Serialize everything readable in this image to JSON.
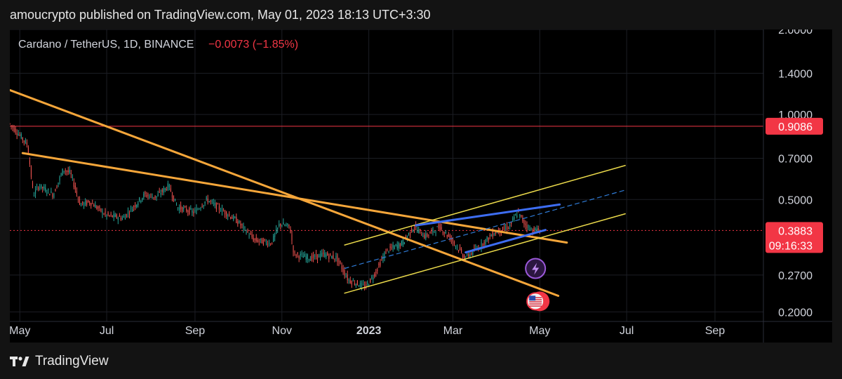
{
  "header": {
    "published": "amoucrypto published on TradingView.com, May 01, 2023 18:13 UTC+3:30"
  },
  "footer": {
    "brand": "TradingView"
  },
  "colors": {
    "background": "#000000",
    "up": "#26a69a",
    "down": "#ef5350",
    "trendline_orange": "#f5a63a",
    "channel_yellow": "#e9d84a",
    "wedge_blue": "#3d6df2",
    "price_red": "#f23645"
  },
  "chart_data": {
    "type": "candlestick",
    "title": "Cardano / TetherUS, 1D, BINANCE",
    "change": "−0.0073 (−1.85%)",
    "y_scale": "log",
    "ylim": [
      0.185,
      2.0
    ],
    "y_ticks": [
      {
        "value": 2.0,
        "label": "2.0000"
      },
      {
        "value": 1.4,
        "label": "1.4000"
      },
      {
        "value": 1.0,
        "label": "1.0000"
      },
      {
        "value": 0.7,
        "label": "0.7000"
      },
      {
        "value": 0.5,
        "label": "0.5000"
      },
      {
        "value": 0.27,
        "label": "0.2700"
      },
      {
        "value": 0.2,
        "label": "0.2000"
      }
    ],
    "x_range": [
      "2022-04-24",
      "2023-10-05"
    ],
    "x_ticks": [
      {
        "date": "2022-05-01",
        "label": "May",
        "bold": false
      },
      {
        "date": "2022-07-01",
        "label": "Jul",
        "bold": false
      },
      {
        "date": "2022-09-01",
        "label": "Sep",
        "bold": false
      },
      {
        "date": "2022-11-01",
        "label": "Nov",
        "bold": false
      },
      {
        "date": "2023-01-01",
        "label": "2023",
        "bold": true
      },
      {
        "date": "2023-03-01",
        "label": "Mar",
        "bold": false
      },
      {
        "date": "2023-05-01",
        "label": "May",
        "bold": false
      },
      {
        "date": "2023-07-01",
        "label": "Jul",
        "bold": false
      },
      {
        "date": "2023-09-01",
        "label": "Sep",
        "bold": false
      }
    ],
    "price_path": [
      [
        "2022-04-24",
        0.93
      ],
      [
        "2022-05-01",
        0.85
      ],
      [
        "2022-05-07",
        0.78
      ],
      [
        "2022-05-11",
        0.52
      ],
      [
        "2022-05-15",
        0.56
      ],
      [
        "2022-05-25",
        0.52
      ],
      [
        "2022-06-01",
        0.64
      ],
      [
        "2022-06-06",
        0.62
      ],
      [
        "2022-06-13",
        0.48
      ],
      [
        "2022-06-20",
        0.49
      ],
      [
        "2022-07-01",
        0.44
      ],
      [
        "2022-07-13",
        0.43
      ],
      [
        "2022-07-28",
        0.52
      ],
      [
        "2022-08-05",
        0.51
      ],
      [
        "2022-08-14",
        0.56
      ],
      [
        "2022-08-20",
        0.47
      ],
      [
        "2022-09-01",
        0.45
      ],
      [
        "2022-09-10",
        0.5
      ],
      [
        "2022-09-20",
        0.46
      ],
      [
        "2022-10-01",
        0.42
      ],
      [
        "2022-10-13",
        0.36
      ],
      [
        "2022-10-25",
        0.35
      ],
      [
        "2022-10-31",
        0.41
      ],
      [
        "2022-11-07",
        0.4
      ],
      [
        "2022-11-10",
        0.32
      ],
      [
        "2022-11-22",
        0.31
      ],
      [
        "2022-12-01",
        0.32
      ],
      [
        "2022-12-10",
        0.31
      ],
      [
        "2022-12-18",
        0.26
      ],
      [
        "2022-12-30",
        0.245
      ],
      [
        "2023-01-05",
        0.27
      ],
      [
        "2023-01-14",
        0.33
      ],
      [
        "2023-01-25",
        0.35
      ],
      [
        "2023-02-02",
        0.4
      ],
      [
        "2023-02-10",
        0.37
      ],
      [
        "2023-02-20",
        0.4
      ],
      [
        "2023-03-01",
        0.36
      ],
      [
        "2023-03-10",
        0.31
      ],
      [
        "2023-03-20",
        0.34
      ],
      [
        "2023-03-30",
        0.38
      ],
      [
        "2023-04-10",
        0.4
      ],
      [
        "2023-04-16",
        0.45
      ],
      [
        "2023-04-21",
        0.41
      ],
      [
        "2023-04-26",
        0.39
      ],
      [
        "2023-05-01",
        0.3883
      ]
    ],
    "drawings": [
      {
        "name": "orange-resistance-line-1",
        "color": "#f5a63a",
        "width": 3,
        "dash": "",
        "points": [
          [
            "2022-04-24",
            1.22
          ],
          [
            "2023-05-14",
            0.228
          ]
        ]
      },
      {
        "name": "orange-resistance-line-2",
        "color": "#f5a63a",
        "width": 3,
        "dash": "",
        "points": [
          [
            "2022-05-03",
            0.73
          ],
          [
            "2023-05-20",
            0.352
          ]
        ]
      },
      {
        "name": "channel-upper-line",
        "color": "#e9d84a",
        "width": 1.5,
        "dash": "",
        "points": [
          [
            "2022-12-15",
            0.345
          ],
          [
            "2023-06-30",
            0.66
          ]
        ]
      },
      {
        "name": "channel-lower-line",
        "color": "#e9d84a",
        "width": 1.5,
        "dash": "",
        "points": [
          [
            "2022-12-15",
            0.233
          ],
          [
            "2023-06-30",
            0.445
          ]
        ]
      },
      {
        "name": "channel-mid-line",
        "color": "#2f7bd6",
        "width": 1.2,
        "dash": "6,5",
        "points": [
          [
            "2022-12-15",
            0.285
          ],
          [
            "2023-06-30",
            0.54
          ]
        ]
      },
      {
        "name": "wedge-upper-line",
        "color": "#3d6df2",
        "width": 3,
        "dash": "",
        "points": [
          [
            "2023-02-03",
            0.405
          ],
          [
            "2023-05-15",
            0.48
          ]
        ]
      },
      {
        "name": "wedge-lower-line",
        "color": "#3d6df2",
        "width": 3,
        "dash": "",
        "points": [
          [
            "2023-03-10",
            0.325
          ],
          [
            "2023-05-05",
            0.39
          ]
        ]
      }
    ],
    "horizontal_levels": [
      {
        "name": "resistance-level-line",
        "value": 0.9086,
        "label": "0.9086",
        "color": "#f23645",
        "style": "solid"
      },
      {
        "name": "current-price-line",
        "value": 0.3883,
        "label": "0.3883",
        "countdown": "09:16:33",
        "color": "#f23645",
        "style": "dotted"
      }
    ],
    "markers": [
      {
        "name": "lightning-event-icon",
        "date": "2023-04-28",
        "value": 0.285
      },
      {
        "name": "us-flag-event-icon",
        "date": "2023-04-28",
        "value": 0.218
      }
    ]
  }
}
